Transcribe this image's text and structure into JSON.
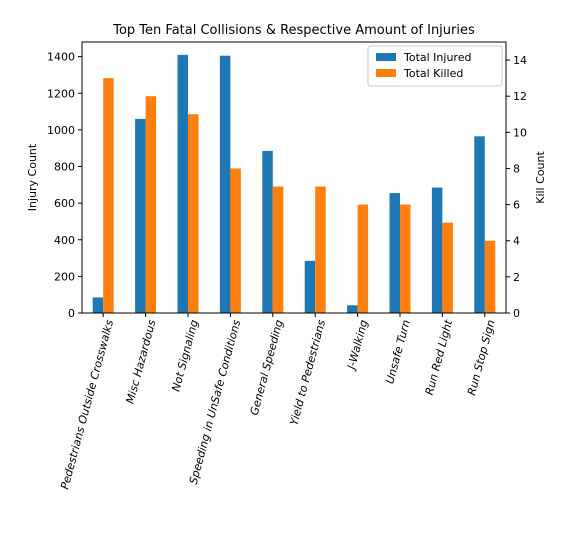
{
  "chart_data": {
    "type": "bar",
    "title": "Top Ten Fatal Collisions & Respective Amount of Injuries",
    "ylabel": "Injury Count",
    "y2label": "Kill Count",
    "categories": [
      "Pedestrians Outside Crosswalks",
      "Misc Hazardous",
      "Not Signaling",
      "Speeding in UnSafe Conditions",
      "General Speeding",
      "Yield to Pedestrians",
      "J-Walking",
      "Unsafe Turn",
      "Run Red Light",
      "Run Stop Sign"
    ],
    "series": [
      {
        "name": "Total Injured",
        "axis": "left",
        "color": "#1f77b4",
        "values": [
          85,
          1060,
          1410,
          1405,
          885,
          285,
          42,
          655,
          685,
          965
        ]
      },
      {
        "name": "Total Killed",
        "axis": "right",
        "color": "#ff7f0e",
        "values": [
          13,
          12,
          11,
          8,
          7,
          7,
          6,
          6,
          5,
          4
        ]
      }
    ],
    "ylim": [
      0,
      1480
    ],
    "y2lim": [
      0,
      15
    ],
    "yticks": [
      "0",
      "200",
      "400",
      "600",
      "800",
      "1000",
      "1200",
      "1400"
    ],
    "y2ticks": [
      "0",
      "2",
      "4",
      "6",
      "8",
      "10",
      "12",
      "14"
    ],
    "legend": "top-right",
    "grid": false
  }
}
